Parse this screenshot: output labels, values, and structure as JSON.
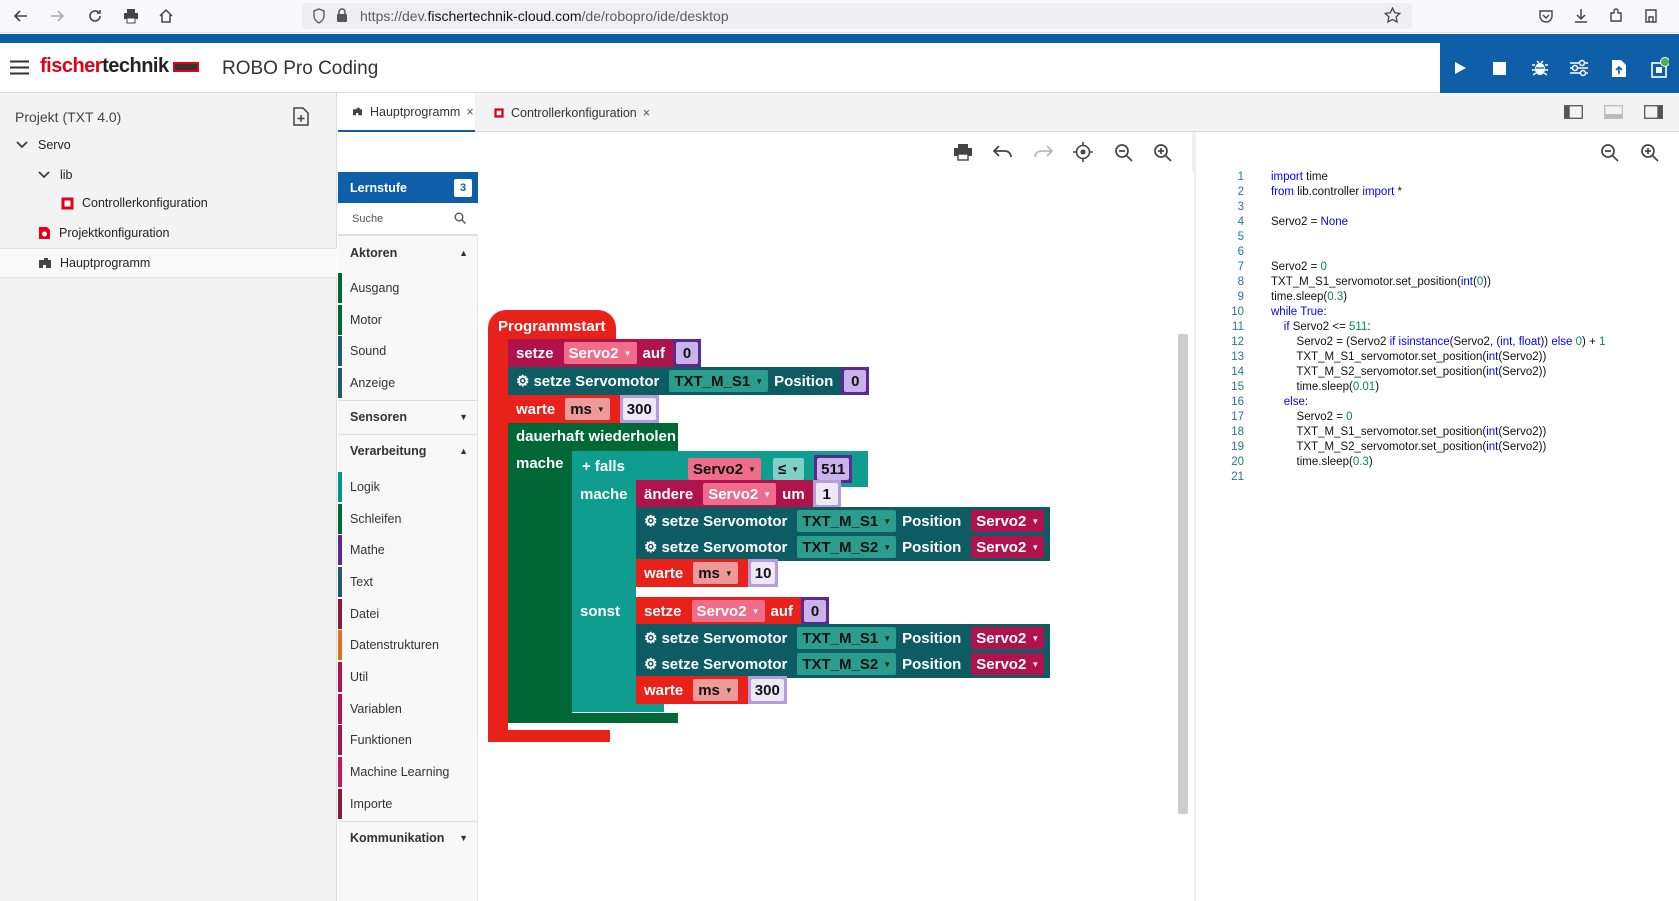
{
  "browser": {
    "url_prefix": "https://dev.",
    "url_host": "fischertechnik-cloud.com",
    "url_path": "/de/robopro/ide/desktop",
    "icons": [
      "back-icon",
      "forward-icon",
      "reload-icon",
      "print-icon",
      "home-icon",
      "shield-icon",
      "lock-icon",
      "star-icon",
      "pocket-icon",
      "download-icon",
      "extensions-icon",
      "account-icon"
    ]
  },
  "app": {
    "logo_red": "fischer",
    "logo_dark": "technik",
    "title": "ROBO Pro Coding",
    "accent": "#0f5fa8",
    "run_buttons": [
      "play-icon",
      "stop-icon",
      "debug-icon",
      "settings-sliders-icon",
      "upload-icon",
      "device-status-icon"
    ]
  },
  "sidebar": {
    "project_title": "Projekt (TXT 4.0)",
    "tree": [
      {
        "label": "Servo",
        "type": "folder"
      },
      {
        "label": "lib",
        "type": "folder"
      },
      {
        "label": "Controllerkonfiguration",
        "type": "file"
      },
      {
        "label": "Projektkonfiguration",
        "type": "file"
      },
      {
        "label": "Hauptprogramm",
        "type": "file"
      }
    ]
  },
  "tabs": [
    {
      "label": "Hauptprogramm",
      "close": "×"
    },
    {
      "label": "Controllerkonfiguration",
      "close": "×"
    }
  ],
  "toolbox": {
    "level_label": "Lernstufe",
    "level_value": "3",
    "search_placeholder": "Suche",
    "sections": [
      {
        "header": "Aktoren",
        "caret": "▲",
        "items": [
          {
            "label": "Ausgang",
            "color": "#006837"
          },
          {
            "label": "Motor",
            "color": "#006837"
          },
          {
            "label": "Sound",
            "color": "#1f5a6e"
          },
          {
            "label": "Anzeige",
            "color": "#1f5a6e"
          }
        ]
      },
      {
        "header": "Sensoren",
        "caret": "▼",
        "items": []
      },
      {
        "header": "Verarbeitung",
        "caret": "▲",
        "items": [
          {
            "label": "Logik",
            "color": "#009688"
          },
          {
            "label": "Schleifen",
            "color": "#006837"
          },
          {
            "label": "Mathe",
            "color": "#5b2a91"
          },
          {
            "label": "Text",
            "color": "#1f5a6e"
          },
          {
            "label": "Datei",
            "color": "#8a1a3c"
          },
          {
            "label": "Datenstrukturen",
            "color": "#e07020"
          },
          {
            "label": "Util",
            "color": "#b0124b"
          },
          {
            "label": "Variablen",
            "color": "#b0124b"
          },
          {
            "label": "Funktionen",
            "color": "#a0174a"
          },
          {
            "label": "Machine Learning",
            "color": "#c2185b"
          },
          {
            "label": "Importe",
            "color": "#8a1a3c"
          }
        ]
      },
      {
        "header": "Kommunikation",
        "caret": "▼",
        "items": []
      }
    ]
  },
  "blocks": {
    "start": "Programmstart",
    "set": "setze",
    "to": "auf",
    "servo_var": "Servo2",
    "zero": "0",
    "set_servo": "setze Servomotor",
    "motor1": "TXT_M_S1",
    "motor2": "TXT_M_S2",
    "position": "Position",
    "wait": "warte",
    "unit": "ms",
    "v300": "300",
    "forever": "dauerhaft wiederholen",
    "do": "mache",
    "plus": "+",
    "if": "falls",
    "op": "≤",
    "v511": "511",
    "change": "ändere",
    "by": "um",
    "v1": "1",
    "v10": "10",
    "else": "sonst"
  },
  "code": {
    "lines": [
      "import time",
      "from lib.controller import *",
      "",
      "Servo2 = None",
      "",
      "",
      "Servo2 = 0",
      "TXT_M_S1_servomotor.set_position(int(0))",
      "time.sleep(0.3)",
      "while True:",
      "    if Servo2 <= 511:",
      "        Servo2 = (Servo2 if isinstance(Servo2, (int, float)) else 0) + 1",
      "        TXT_M_S1_servomotor.set_position(int(Servo2))",
      "        TXT_M_S2_servomotor.set_position(int(Servo2))",
      "        time.sleep(0.01)",
      "    else:",
      "        Servo2 = 0",
      "        TXT_M_S1_servomotor.set_position(int(Servo2))",
      "        TXT_M_S2_servomotor.set_position(int(Servo2))",
      "        time.sleep(0.3)",
      ""
    ]
  }
}
